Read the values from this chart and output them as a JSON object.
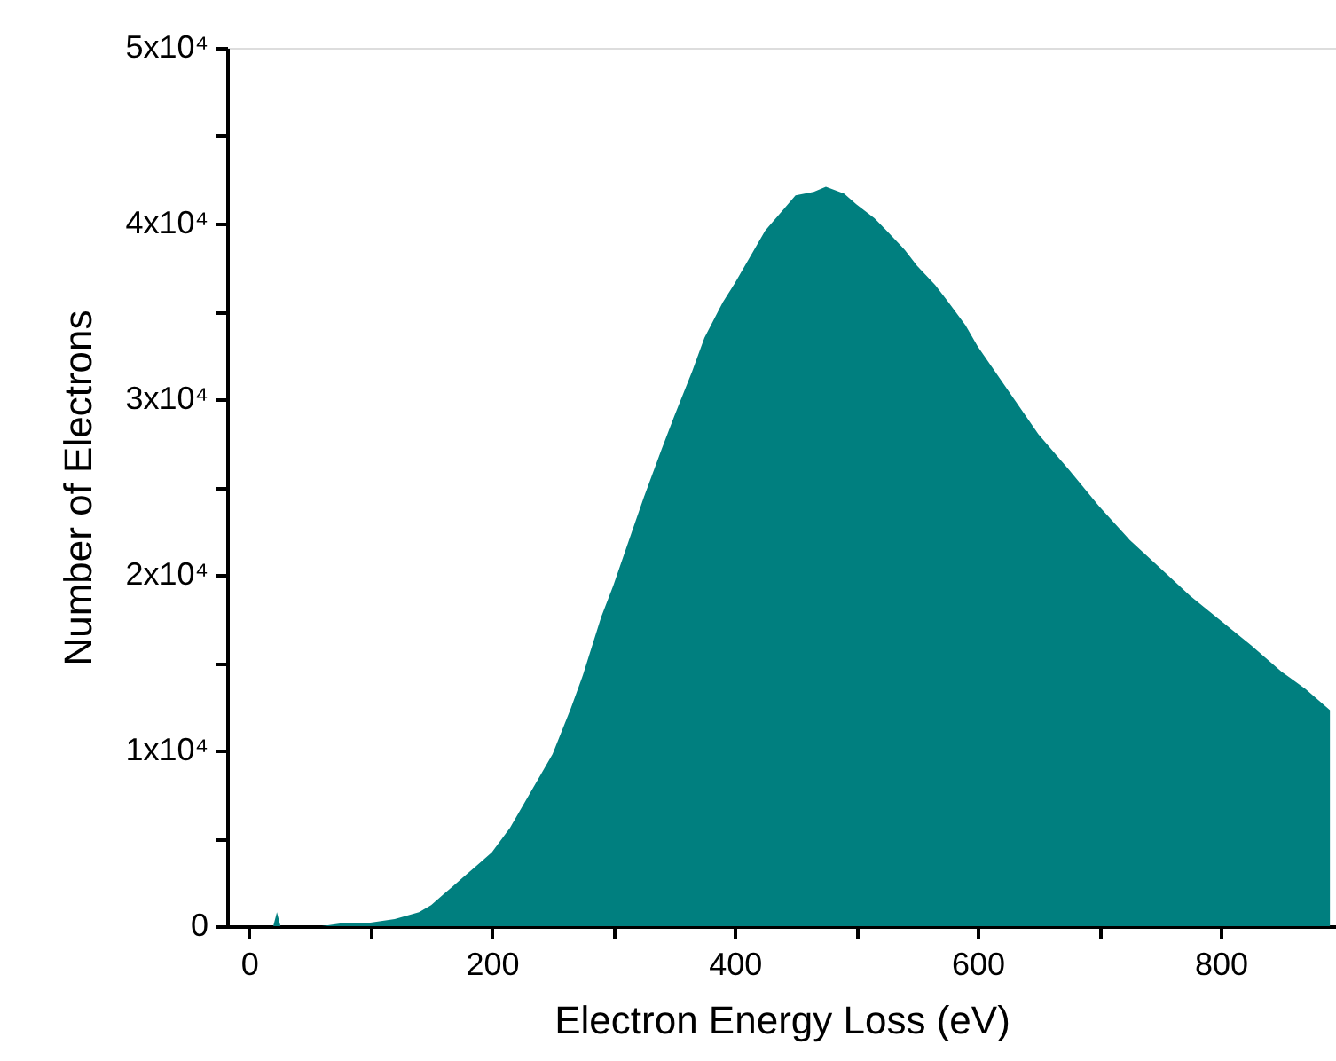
{
  "chart_data": {
    "type": "area",
    "xlabel": "Electron Energy Loss (eV)",
    "ylabel": "Number of Electrons",
    "x": [
      -10,
      18,
      20,
      23,
      26,
      30,
      60,
      80,
      100,
      120,
      140,
      150,
      160,
      175,
      190,
      200,
      215,
      225,
      240,
      250,
      265,
      275,
      290,
      300,
      315,
      325,
      340,
      350,
      365,
      375,
      390,
      400,
      415,
      425,
      440,
      450,
      465,
      475,
      490,
      500,
      515,
      525,
      540,
      550,
      565,
      575,
      590,
      600,
      625,
      650,
      675,
      700,
      725,
      750,
      775,
      800,
      825,
      850,
      870,
      890
    ],
    "values": [
      0,
      0,
      0,
      800,
      0,
      0,
      0,
      200,
      200,
      400,
      800,
      1200,
      1800,
      2700,
      3600,
      4200,
      5600,
      6800,
      8600,
      9800,
      12400,
      14300,
      17600,
      19400,
      22400,
      24400,
      27200,
      29000,
      31600,
      33500,
      35500,
      36600,
      38400,
      39600,
      40800,
      41600,
      41800,
      42100,
      41700,
      41100,
      40300,
      39600,
      38500,
      37600,
      36500,
      35600,
      34200,
      33000,
      30500,
      28000,
      26000,
      23900,
      22000,
      20400,
      18800,
      17400,
      16000,
      14500,
      13500,
      12300
    ],
    "color": "#007f7f",
    "xlim": [
      -18,
      895
    ],
    "ylim": [
      0,
      50000
    ],
    "xticks": [
      0,
      {
        "value": 100,
        "label": null
      },
      200,
      {
        "value": 300,
        "label": null
      },
      400,
      {
        "value": 500,
        "label": null
      },
      600,
      {
        "value": 700,
        "label": null
      },
      800
    ],
    "yticks": [
      {
        "value": 0,
        "label": "0"
      },
      {
        "value": 5000,
        "label": null
      },
      {
        "value": 10000,
        "label": "1x10⁴"
      },
      {
        "value": 15000,
        "label": null
      },
      {
        "value": 20000,
        "label": "2x10⁴"
      },
      {
        "value": 25000,
        "label": null
      },
      {
        "value": 30000,
        "label": "3x10⁴"
      },
      {
        "value": 35000,
        "label": null
      },
      {
        "value": 40000,
        "label": "4x10⁴"
      },
      {
        "value": 45000,
        "label": null
      },
      {
        "value": 50000,
        "label": "5x10⁴"
      }
    ],
    "grid": false
  }
}
